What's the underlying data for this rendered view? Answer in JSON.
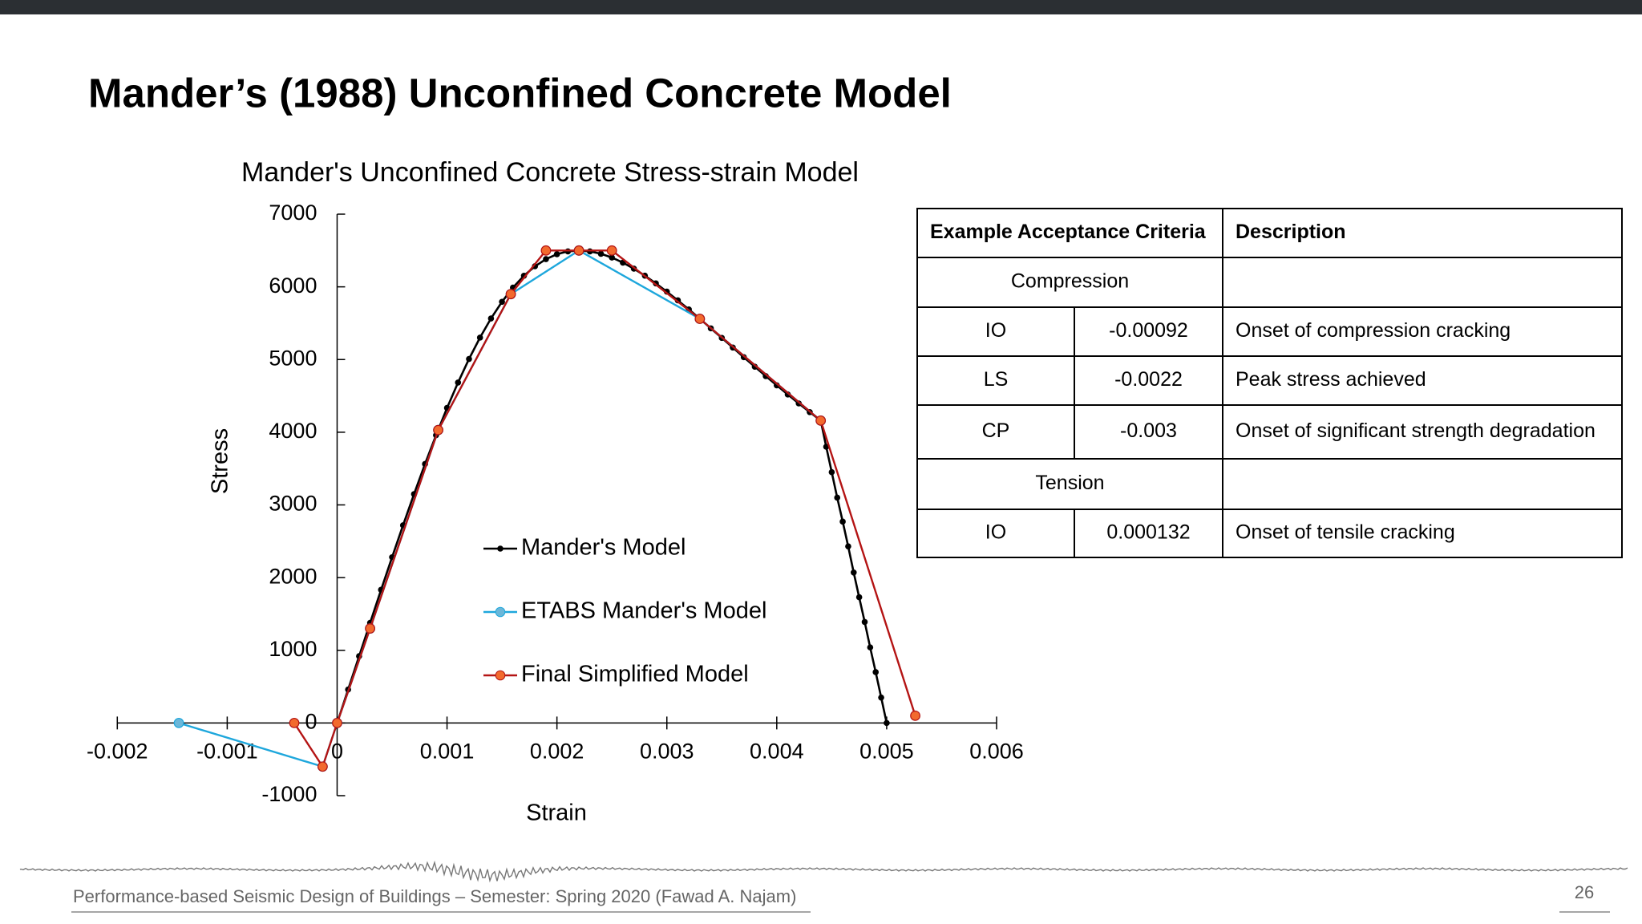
{
  "title": "Mander’s (1988) Unconfined Concrete Model",
  "chart_data": {
    "type": "line",
    "title": "Mander's Unconfined Concrete Stress-strain Model",
    "x_label": "Strain",
    "y_label": "Stress",
    "xlim": [
      -0.002,
      0.006
    ],
    "xticks": [
      -0.002,
      -0.001,
      0,
      0.001,
      0.002,
      0.003,
      0.004,
      0.005,
      0.006
    ],
    "ylim": [
      -1000,
      7000
    ],
    "yticks": [
      -1000,
      0,
      1000,
      2000,
      3000,
      4000,
      5000,
      6000,
      7000
    ],
    "grid": false,
    "legend": "center",
    "series": [
      {
        "name": "Mander's Model",
        "color": "#000000",
        "marker_color": "#000000",
        "x": [
          0,
          0.0001,
          0.0002,
          0.0003,
          0.0004,
          0.0005,
          0.0006,
          0.0007,
          0.0008,
          0.0009,
          0.001,
          0.0011,
          0.0012,
          0.0013,
          0.0014,
          0.0015,
          0.0016,
          0.0017,
          0.0018,
          0.0019,
          0.002,
          0.0021,
          0.0022,
          0.0023,
          0.0024,
          0.0025,
          0.0026,
          0.0027,
          0.0028,
          0.0029,
          0.003,
          0.0031,
          0.0032,
          0.0033,
          0.0034,
          0.0035,
          0.0036,
          0.0037,
          0.0038,
          0.0039,
          0.004,
          0.0041,
          0.0042,
          0.0043,
          0.0044,
          0.00445,
          0.0045,
          0.00455,
          0.0046,
          0.00465,
          0.0047,
          0.00475,
          0.0048,
          0.00485,
          0.0049,
          0.00495,
          0.005
        ],
        "values": [
          0,
          460,
          919,
          1377,
          1832,
          2280,
          2720,
          3149,
          3563,
          3959,
          4334,
          4684,
          5008,
          5302,
          5565,
          5794,
          5990,
          6153,
          6283,
          6381,
          6449,
          6488,
          6500,
          6488,
          6455,
          6403,
          6333,
          6250,
          6154,
          6048,
          5934,
          5814,
          5689,
          5561,
          5429,
          5297,
          5165,
          5032,
          4901,
          4772,
          4645,
          4519,
          4396,
          4277,
          4160,
          3800,
          3450,
          3100,
          2770,
          2430,
          2070,
          1730,
          1390,
          1040,
          700,
          350,
          0
        ]
      },
      {
        "name": "ETABS Mander's Model",
        "color": "#1ea7dc",
        "marker_color": "#6bb7d9",
        "x": [
          -0.00144,
          -0.000132,
          0,
          0.0003,
          0.00092,
          0.00158,
          0.0022,
          0.0033,
          0.0044
        ],
        "values": [
          0,
          -600,
          0,
          1300,
          4030,
          5900,
          6500,
          5560,
          4160
        ]
      },
      {
        "name": "Final Simplified Model",
        "color": "#b41414",
        "marker_color": "#f26a2e",
        "x": [
          -0.00039,
          -0.000132,
          0,
          0.0003,
          0.00092,
          0.00158,
          0.0019,
          0.0022,
          0.0025,
          0.0033,
          0.0044,
          0.00526
        ],
        "values": [
          0,
          -600,
          0,
          1300,
          4030,
          5900,
          6500,
          6500,
          6500,
          5560,
          4160,
          100
        ]
      }
    ]
  },
  "table": {
    "header": [
      "Example Acceptance Criteria",
      "Description"
    ],
    "groups": [
      {
        "name": "Compression",
        "rows": [
          [
            "IO",
            "-0.00092",
            "Onset of compression cracking"
          ],
          [
            "LS",
            "-0.0022",
            "Peak stress achieved"
          ],
          [
            "CP",
            "-0.003",
            "Onset of significant strength degradation"
          ]
        ]
      },
      {
        "name": "Tension",
        "rows": [
          [
            "IO",
            "0.000132",
            "Onset of tensile cracking"
          ]
        ]
      }
    ]
  },
  "footer": "Performance-based Seismic Design of Buildings – Semester: Spring 2020 (Fawad A. Najam)",
  "page_number": "26"
}
